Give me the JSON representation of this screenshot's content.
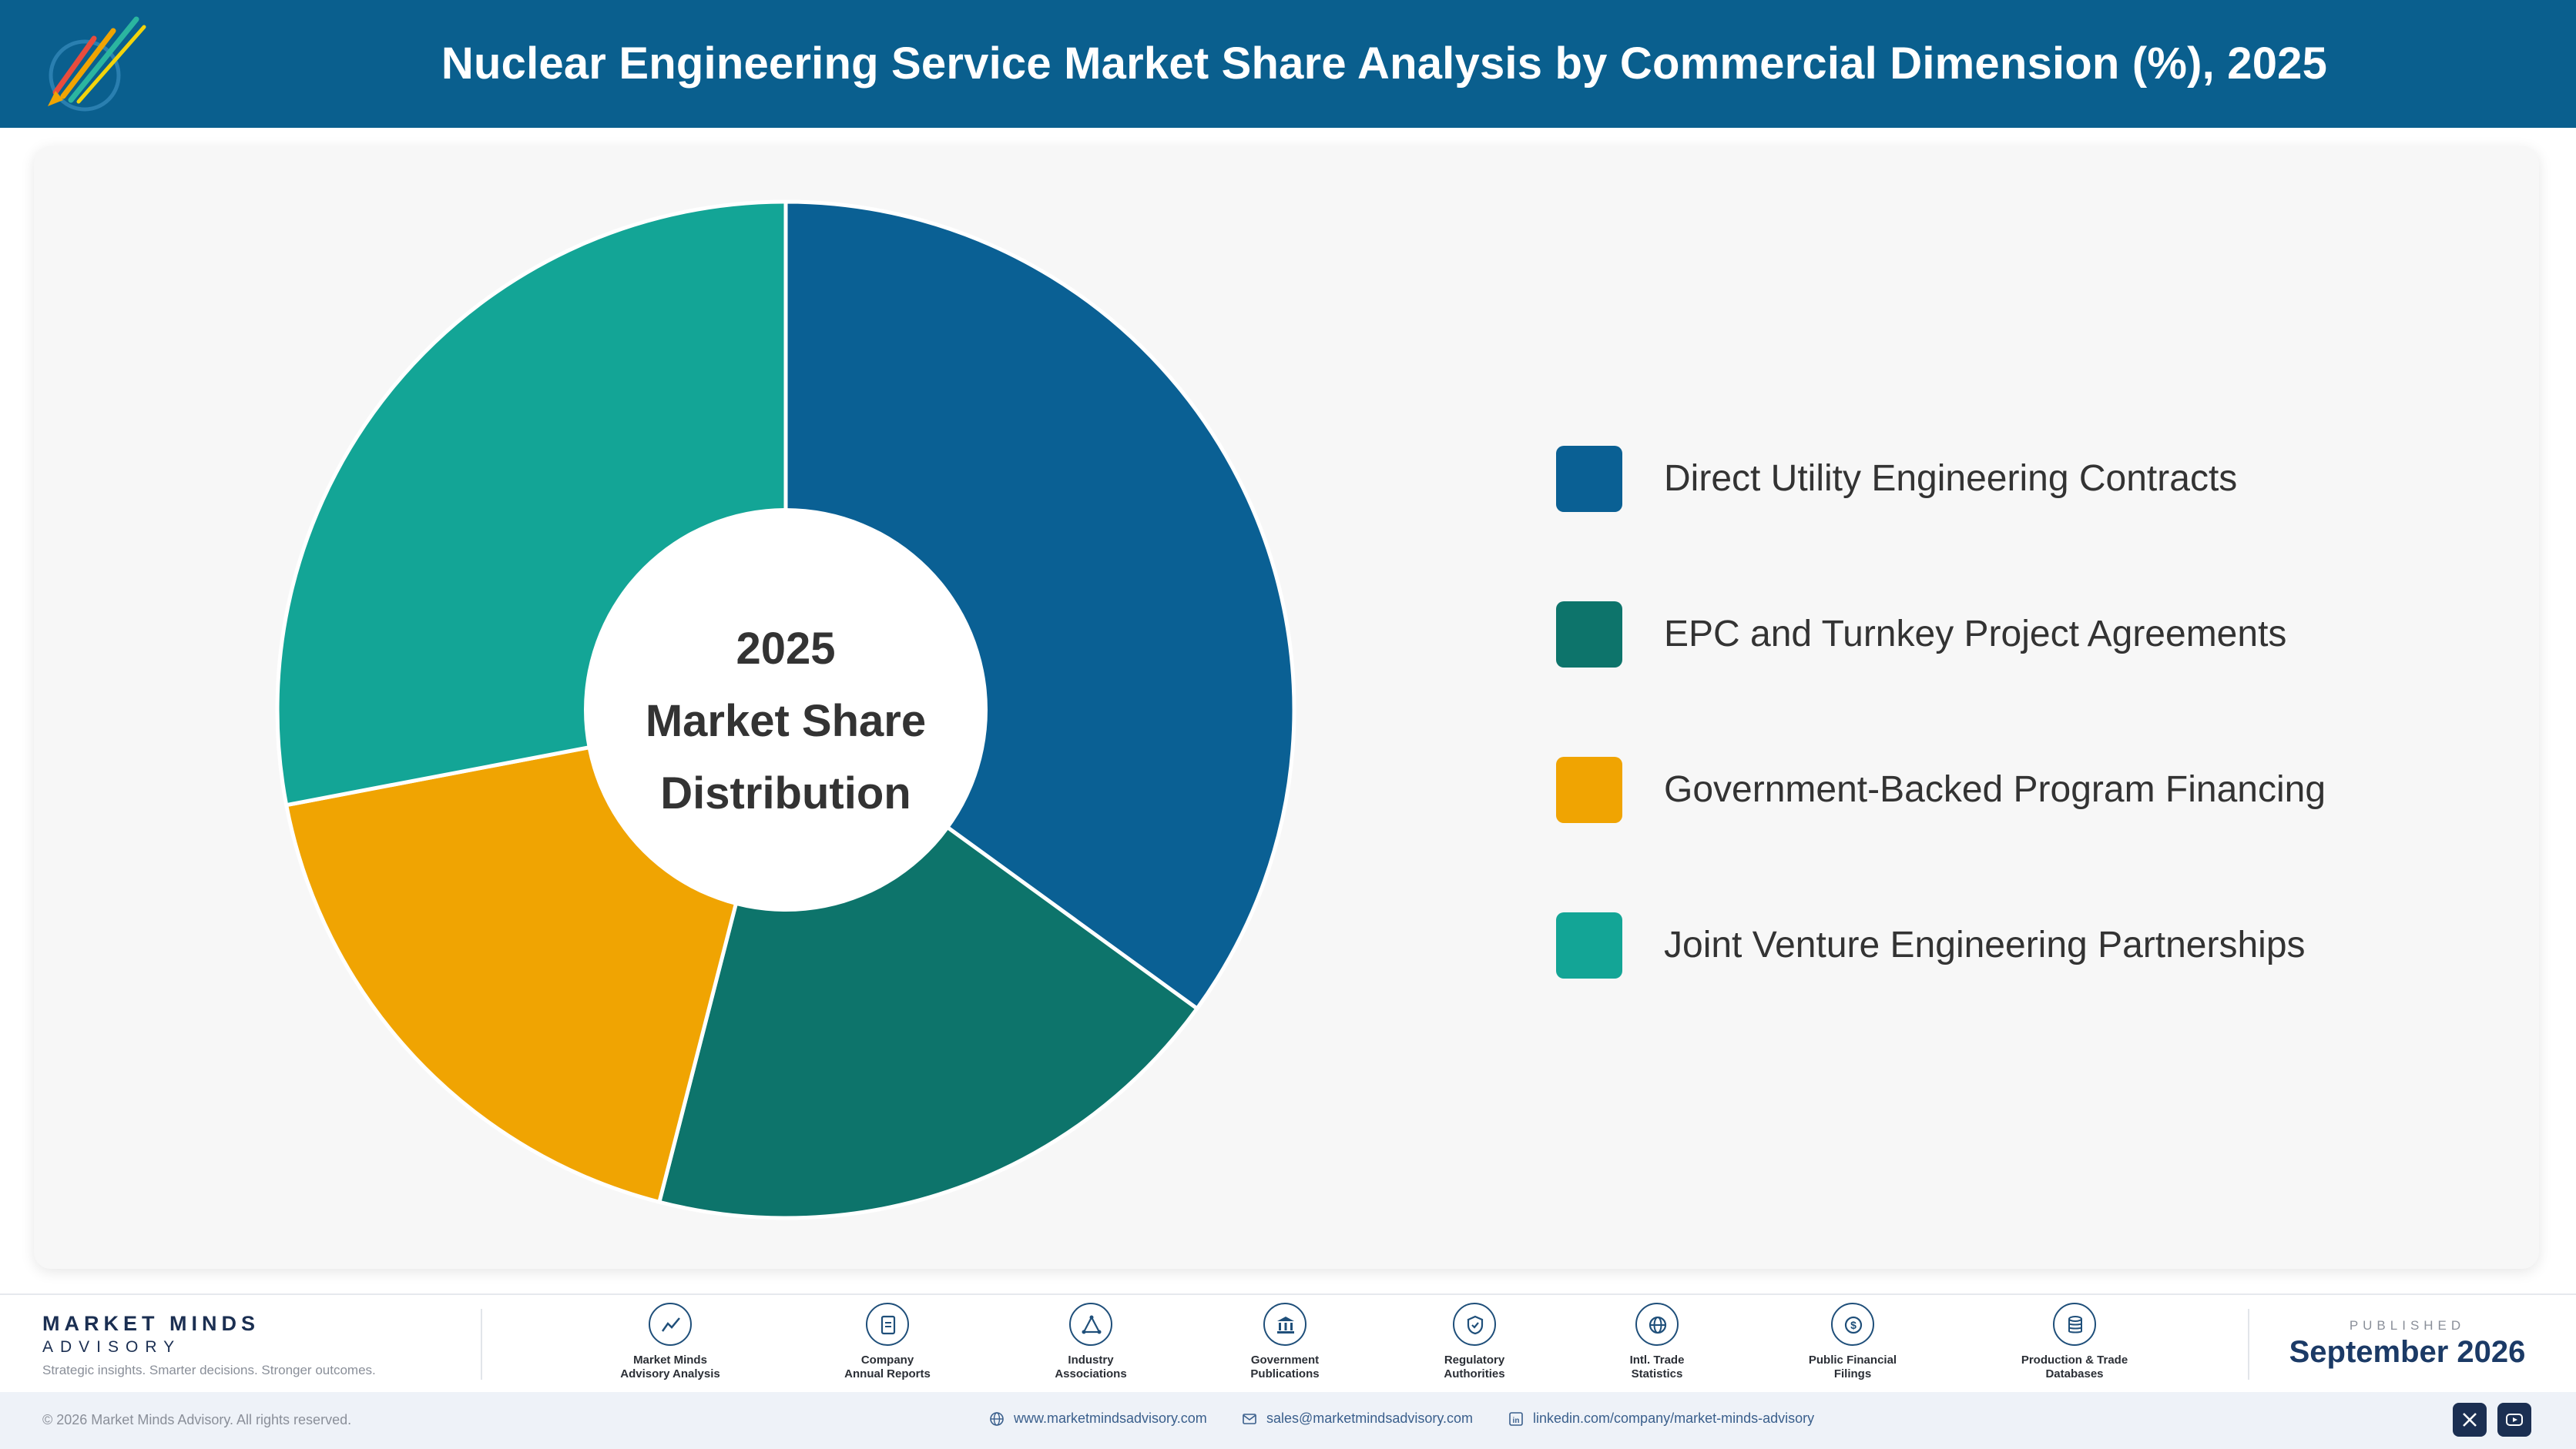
{
  "header": {
    "title": "Nuclear Engineering Service Market Share Analysis by Commercial Dimension (%), 2025"
  },
  "chart_data": {
    "type": "pie",
    "title": "Nuclear Engineering Service Market Share Analysis by Commercial Dimension (%), 2025",
    "center_label": [
      "2025",
      "Market Share",
      "Distribution"
    ],
    "categories": [
      "Direct Utility Engineering Contracts",
      "EPC and Turnkey Project Agreements",
      "Government-Backed Program Financing",
      "Joint Venture Engineering Partnerships"
    ],
    "values": [
      35,
      19,
      18,
      28
    ],
    "colors": [
      "#0a6094",
      "#0d746b",
      "#f0a402",
      "#13a596"
    ],
    "legend_position": "right",
    "donut": true
  },
  "footer": {
    "brand_name": "MARKET MINDS",
    "brand_sub": "ADVISORY",
    "brand_tagline": "Strategic insights. Smarter decisions. Stronger outcomes.",
    "sources": [
      {
        "icon": "trend-chart-icon",
        "label": "Market Minds\nAdvisory Analysis"
      },
      {
        "icon": "document-icon",
        "label": "Company\nAnnual Reports"
      },
      {
        "icon": "network-icon",
        "label": "Industry\nAssociations"
      },
      {
        "icon": "government-building-icon",
        "label": "Government\nPublications"
      },
      {
        "icon": "shield-check-icon",
        "label": "Regulatory\nAuthorities"
      },
      {
        "icon": "globe-icon",
        "label": "Intl. Trade\nStatistics"
      },
      {
        "icon": "dollar-coin-icon",
        "label": "Public Financial\nFilings"
      },
      {
        "icon": "database-icon",
        "label": "Production & Trade\nDatabases"
      }
    ],
    "published_label": "PUBLISHED",
    "published_date": "September 2026"
  },
  "bottom_bar": {
    "copyright": "© 2026 Market Minds Advisory. All rights reserved.",
    "website": "www.marketmindsadvisory.com",
    "email": "sales@marketmindsadvisory.com",
    "linkedin": "linkedin.com/company/market-minds-advisory"
  }
}
